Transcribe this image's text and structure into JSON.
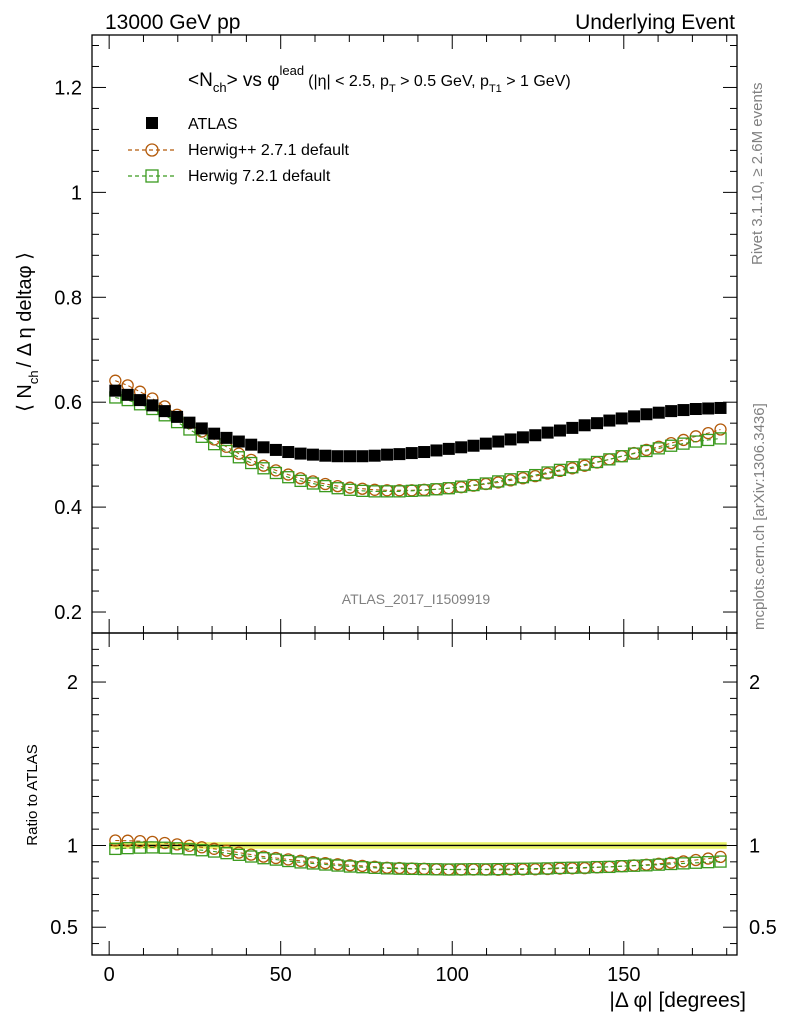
{
  "header": {
    "left": "13000 GeV pp",
    "right": "Underlying Event"
  },
  "side": {
    "rivet": "Rivet 3.1.10, ≥ 2.6M events",
    "mcplots": "mcplots.cern.ch [arXiv:1306.3436]"
  },
  "chart_data": {
    "type": "scatter",
    "title": {
      "lhs": "<N",
      "lhs_sub": "ch",
      "mid": "> vs φ",
      "sup": "lead",
      "cond": "(|η| < 2.5, p",
      "cond_sub1": "T",
      "cond_mid": " > 0.5 GeV, p",
      "cond_sub2": "T1",
      "cond_end": " > 1 GeV)"
    },
    "ylabel_main": {
      "a": "⟨ N",
      "sub": "ch",
      "b": "/ Δ η deltaφ ⟩"
    },
    "ylabel_ratio": "Ratio to ATLAS",
    "xlabel": "|Δ φ| [degrees]",
    "analysis_label": "ATLAS_2017_I1509919",
    "xlim": [
      -5,
      183
    ],
    "ylim_main": [
      0.16,
      1.3
    ],
    "ylim_ratio": [
      0.33,
      2.3
    ],
    "yticks_main": [
      "0.2",
      "0.4",
      "0.6",
      "0.8",
      "1",
      "1.2"
    ],
    "yticks_ratio": [
      "0.5",
      "1",
      "2"
    ],
    "xticks": [
      "0",
      "50",
      "100",
      "150"
    ],
    "legend": [
      "ATLAS",
      "Herwig++ 2.7.1 default",
      "Herwig 7.2.1 default"
    ],
    "legend_position": "top-left",
    "colors": {
      "atlas": "#000000",
      "herwigpp": "#b35a0a",
      "herwig7": "#3a9a1e",
      "band": "#eaf568"
    },
    "x": [
      1.8,
      5.4,
      9.0,
      12.6,
      16.2,
      19.8,
      23.4,
      27.0,
      30.6,
      34.2,
      37.8,
      41.4,
      45.0,
      48.6,
      52.2,
      55.8,
      59.4,
      63.0,
      66.6,
      70.2,
      73.8,
      77.4,
      81.0,
      84.6,
      88.2,
      91.8,
      95.4,
      99.0,
      102.6,
      106.2,
      109.8,
      113.4,
      117.0,
      120.6,
      124.2,
      127.8,
      131.4,
      135.0,
      138.6,
      142.2,
      145.8,
      149.4,
      153.0,
      156.6,
      160.2,
      163.8,
      167.4,
      171.0,
      174.6,
      178.2
    ],
    "series": [
      {
        "name": "ATLAS",
        "values": [
          0.622,
          0.614,
          0.604,
          0.594,
          0.583,
          0.572,
          0.561,
          0.55,
          0.54,
          0.532,
          0.525,
          0.519,
          0.514,
          0.509,
          0.505,
          0.502,
          0.5,
          0.498,
          0.497,
          0.497,
          0.497,
          0.498,
          0.5,
          0.501,
          0.503,
          0.505,
          0.508,
          0.511,
          0.514,
          0.517,
          0.521,
          0.525,
          0.529,
          0.533,
          0.537,
          0.542,
          0.546,
          0.551,
          0.556,
          0.56,
          0.565,
          0.569,
          0.573,
          0.577,
          0.58,
          0.583,
          0.585,
          0.587,
          0.588,
          0.589
        ]
      },
      {
        "name": "Herwig++ 2.7.1 default",
        "values": [
          0.641,
          0.632,
          0.62,
          0.607,
          0.592,
          0.576,
          0.56,
          0.544,
          0.529,
          0.515,
          0.502,
          0.49,
          0.479,
          0.47,
          0.462,
          0.455,
          0.449,
          0.444,
          0.44,
          0.437,
          0.435,
          0.433,
          0.432,
          0.432,
          0.432,
          0.433,
          0.434,
          0.436,
          0.438,
          0.441,
          0.444,
          0.447,
          0.451,
          0.455,
          0.459,
          0.464,
          0.469,
          0.474,
          0.479,
          0.485,
          0.491,
          0.497,
          0.503,
          0.509,
          0.515,
          0.522,
          0.528,
          0.535,
          0.541,
          0.548
        ]
      },
      {
        "name": "Herwig 7.2.1 default",
        "values": [
          0.609,
          0.604,
          0.596,
          0.587,
          0.575,
          0.562,
          0.548,
          0.534,
          0.52,
          0.507,
          0.495,
          0.484,
          0.474,
          0.465,
          0.457,
          0.45,
          0.445,
          0.44,
          0.436,
          0.433,
          0.431,
          0.43,
          0.43,
          0.43,
          0.431,
          0.432,
          0.434,
          0.436,
          0.439,
          0.442,
          0.445,
          0.449,
          0.453,
          0.457,
          0.461,
          0.466,
          0.471,
          0.476,
          0.481,
          0.486,
          0.491,
          0.497,
          0.502,
          0.507,
          0.512,
          0.517,
          0.521,
          0.525,
          0.528,
          0.531
        ]
      }
    ]
  }
}
